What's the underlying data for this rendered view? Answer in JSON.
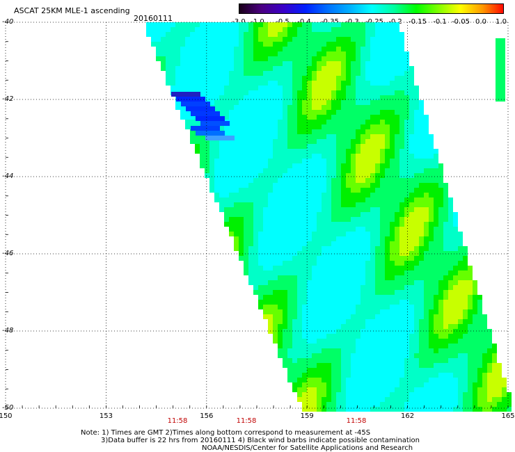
{
  "title": "ASCAT 25KM MLE-1 ascending",
  "date": "20160111",
  "colorbar": {
    "labels": [
      "-3.0",
      "-1.0",
      "-0.5",
      "-0.4",
      "-0.35",
      "-0.3",
      "-0.25",
      "-0.2",
      "-0.15",
      "-0.1",
      "-0.05",
      "0.0",
      "1.0"
    ],
    "colors": [
      "#1a0019",
      "#4b0082",
      "#3a00c8",
      "#0020ff",
      "#0070ff",
      "#00b0ff",
      "#00ffff",
      "#00ffa0",
      "#00ff00",
      "#80ff00",
      "#ffff00",
      "#ff9900",
      "#ff0000"
    ]
  },
  "map": {
    "lat_labels": [
      "-40",
      "-42",
      "-44",
      "-46",
      "-48",
      "-50"
    ],
    "lon_labels": [
      "150",
      "153",
      "156",
      "159",
      "162",
      "165"
    ],
    "time_labels": [
      "11:58",
      "11:58",
      "11:58"
    ]
  },
  "notes": [
    "Note: 1) Times are GMT 2)Times along bottom correspond to measurement at -45S",
    "3)Data buffer is 22 hrs from 20160111 4) Black wind barbs indicate possible contamination",
    "NOAA/NESDIS/Center for Satellite Applications and Research"
  ]
}
